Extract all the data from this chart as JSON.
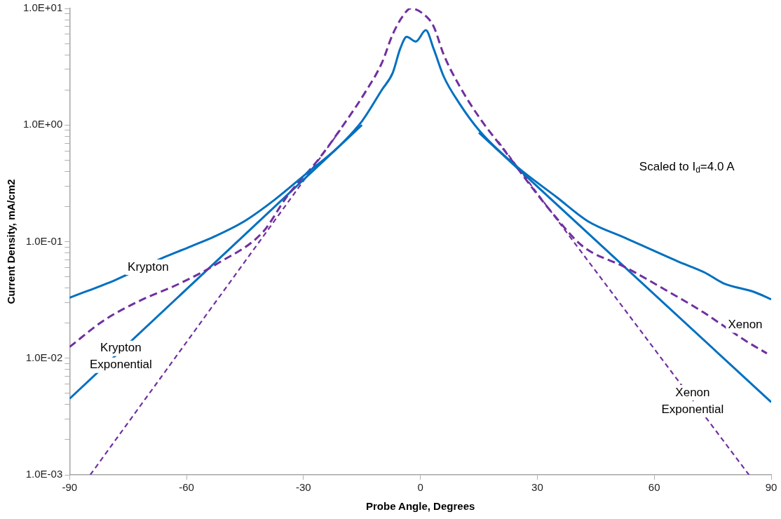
{
  "chart_data": {
    "type": "line",
    "xlabel": "Probe Angle, Degrees",
    "ylabel": "Current Density, mA/cm2",
    "log": "y",
    "grid": false,
    "legend": false,
    "xlim": [
      -90,
      90
    ],
    "xticks": [
      -90,
      -60,
      -30,
      0,
      30,
      60,
      90
    ],
    "ylim": [
      0.001,
      10
    ],
    "yticks": [
      {
        "value": 0.001,
        "label": "1.0E-03"
      },
      {
        "value": 0.002,
        "label": null
      },
      {
        "value": 0.003,
        "label": null
      },
      {
        "value": 0.004,
        "label": null
      },
      {
        "value": 0.005,
        "label": null
      },
      {
        "value": 0.006,
        "label": null
      },
      {
        "value": 0.007,
        "label": null
      },
      {
        "value": 0.008,
        "label": null
      },
      {
        "value": 0.009,
        "label": null
      },
      {
        "value": 0.01,
        "label": "1.0E-02"
      },
      {
        "value": 0.02,
        "label": null
      },
      {
        "value": 0.03,
        "label": null
      },
      {
        "value": 0.04,
        "label": null
      },
      {
        "value": 0.05,
        "label": null
      },
      {
        "value": 0.06,
        "label": null
      },
      {
        "value": 0.07,
        "label": null
      },
      {
        "value": 0.08,
        "label": null
      },
      {
        "value": 0.09,
        "label": null
      },
      {
        "value": 0.1,
        "label": "1.0E-01"
      },
      {
        "value": 0.2,
        "label": null
      },
      {
        "value": 0.3,
        "label": null
      },
      {
        "value": 0.4,
        "label": null
      },
      {
        "value": 0.5,
        "label": null
      },
      {
        "value": 0.6,
        "label": null
      },
      {
        "value": 0.7,
        "label": null
      },
      {
        "value": 0.8,
        "label": null
      },
      {
        "value": 0.9,
        "label": null
      },
      {
        "value": 1,
        "label": "1.0E+00"
      },
      {
        "value": 2,
        "label": null
      },
      {
        "value": 3,
        "label": null
      },
      {
        "value": 4,
        "label": null
      },
      {
        "value": 5,
        "label": null
      },
      {
        "value": 6,
        "label": null
      },
      {
        "value": 7,
        "label": null
      },
      {
        "value": 8,
        "label": null
      },
      {
        "value": 9,
        "label": null
      },
      {
        "value": 10,
        "label": "1.0E+01"
      }
    ],
    "series": [
      {
        "color": "#0070c0",
        "line_style": "solid",
        "x": [
          -90,
          -78.2,
          -65.5,
          -58.9,
          -53,
          -45.1,
          -37.3,
          -29.4,
          -20.8,
          -14.9,
          -9.9,
          -7.1,
          -5.2,
          -3.5,
          -1.2,
          1.4,
          3.4,
          6,
          9.9,
          15.2,
          24.4,
          35,
          42.9,
          52.7,
          65.9,
          73.1,
          77.7,
          85.6,
          90
        ],
        "values": [
          0.033,
          0.047,
          0.074,
          0.091,
          0.11,
          0.15,
          0.23,
          0.38,
          0.66,
          1.09,
          2.0,
          2.8,
          4.5,
          5.7,
          5.2,
          6.5,
          4.5,
          2.6,
          1.55,
          0.89,
          0.45,
          0.24,
          0.15,
          0.107,
          0.068,
          0.054,
          0.044,
          0.037,
          0.032
        ]
      },
      {
        "color": "#7030a0",
        "line_style": "dashed",
        "x": [
          -90,
          -81.3,
          -72.1,
          -61.6,
          -51.7,
          -40.5,
          -34,
          -26.1,
          -19.5,
          -14.2,
          -9.9,
          -7.1,
          -4.5,
          -2.5,
          1.4,
          3.4,
          6,
          9.9,
          15.2,
          21.8,
          27.1,
          33.6,
          41.5,
          52.7,
          62.6,
          72.4,
          83.6,
          88.9
        ],
        "values": [
          0.0125,
          0.021,
          0.031,
          0.044,
          0.066,
          0.12,
          0.25,
          0.51,
          1.03,
          1.9,
          3.4,
          6.0,
          8.6,
          10,
          8.6,
          7.0,
          4.0,
          2.2,
          1.15,
          0.59,
          0.34,
          0.18,
          0.092,
          0.06,
          0.039,
          0.025,
          0.014,
          0.011
        ]
      },
      {
        "color": "#0070c0",
        "line_style": "solid",
        "x": [
          -90,
          -15,
          null,
          15,
          90
        ],
        "values": [
          0.0045,
          1.0,
          null,
          0.86,
          0.0042
        ]
      },
      {
        "color": "#7030a0",
        "line_style": "dotted",
        "x": [
          -84.7,
          -20,
          null,
          20,
          84.3
        ],
        "values": [
          0.001,
          0.96,
          null,
          0.72,
          0.001
        ]
      }
    ],
    "annotations": [
      "Krypton",
      "Krypton Exponential",
      "Xenon",
      "Xenon Exponential",
      "Scaled to I$_{d}$=4.0 A"
    ]
  }
}
